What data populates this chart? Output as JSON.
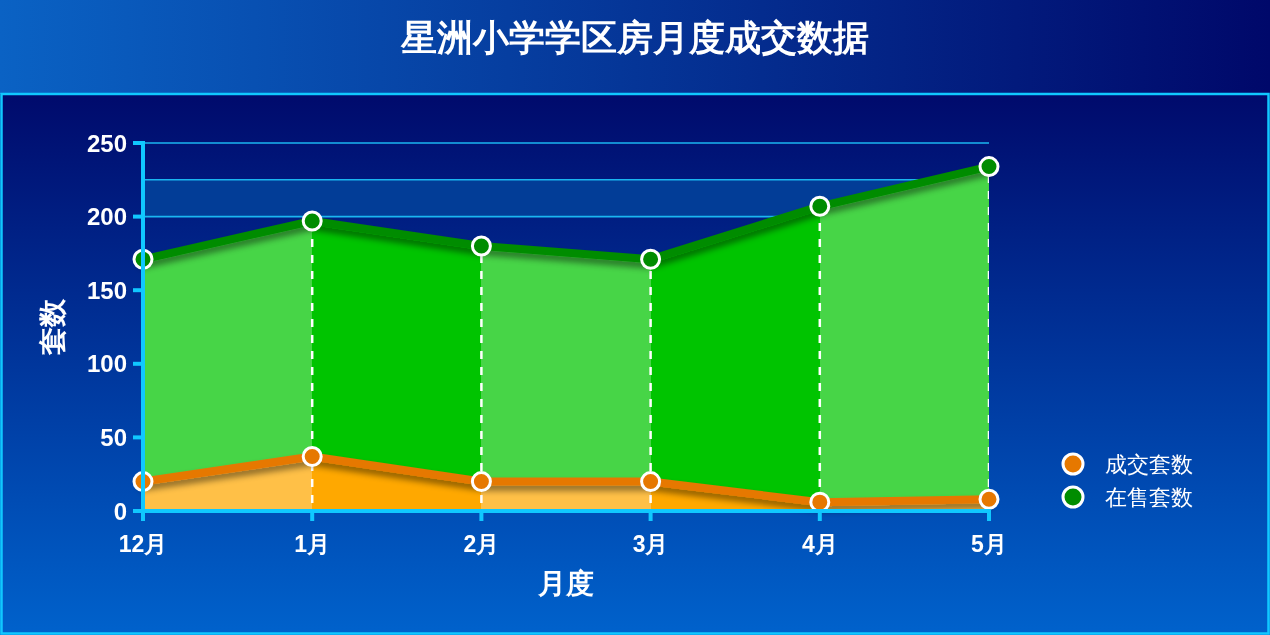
{
  "chart_data": {
    "type": "area",
    "title": "星洲小学学区房月度成交数据",
    "xlabel": "月度",
    "ylabel": "套数",
    "categories": [
      "12月",
      "1月",
      "2月",
      "3月",
      "4月",
      "5月"
    ],
    "series": [
      {
        "name": "成交套数",
        "color": "#e67800",
        "values": [
          20,
          37,
          20,
          20,
          6,
          8
        ]
      },
      {
        "name": "在售套数",
        "color": "#008c00",
        "values": [
          171,
          197,
          180,
          171,
          207,
          234
        ]
      }
    ],
    "ylim": [
      0,
      250
    ],
    "yticks": [
      0,
      50,
      100,
      150,
      200,
      {
        "value": 225,
        "label": null
      },
      250
    ],
    "bands": [
      {
        "axis": "y",
        "from": 200,
        "to": 225,
        "color": "#023d97"
      }
    ],
    "grid": true,
    "legend": "bottom right",
    "marker": "circle",
    "line_style": "solid"
  }
}
